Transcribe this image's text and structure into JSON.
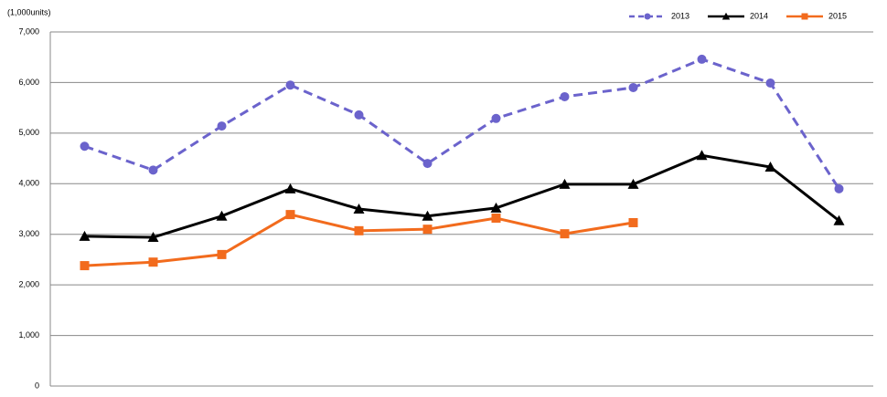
{
  "chart_data": {
    "type": "line",
    "y_axis_label": "(1,000units)",
    "categories": [
      null,
      null,
      null,
      null,
      null,
      null,
      null,
      null,
      null,
      null,
      null,
      null
    ],
    "series": [
      {
        "name": "2013",
        "color": "#6b63cc",
        "marker": "circle",
        "dashed": true,
        "values": [
          4740,
          4270,
          5140,
          5950,
          5360,
          4400,
          5290,
          5720,
          5900,
          6460,
          5990,
          3900
        ]
      },
      {
        "name": "2014",
        "color": "#000000",
        "marker": "triangle",
        "dashed": false,
        "values": [
          2960,
          2940,
          3360,
          3900,
          3500,
          3360,
          3520,
          3990,
          3990,
          4560,
          4330,
          3270
        ]
      },
      {
        "name": "2015",
        "color": "#f26b1d",
        "marker": "square",
        "dashed": false,
        "values": [
          2380,
          2450,
          2600,
          3390,
          3070,
          3100,
          3320,
          3010,
          3230,
          null,
          null,
          null
        ]
      }
    ],
    "ylim": [
      0,
      7000
    ],
    "yticks": [
      {
        "value": 0,
        "label": "0"
      },
      {
        "value": 1000,
        "label": "1,000"
      },
      {
        "value": 2000,
        "label": "2,000"
      },
      {
        "value": 3000,
        "label": "3,000"
      },
      {
        "value": 4000,
        "label": "4,000"
      },
      {
        "value": 5000,
        "label": "5,000"
      },
      {
        "value": 6000,
        "label": "6,000"
      },
      {
        "value": 7000,
        "label": "7,000"
      }
    ],
    "grid": true,
    "legend": "top-right"
  }
}
